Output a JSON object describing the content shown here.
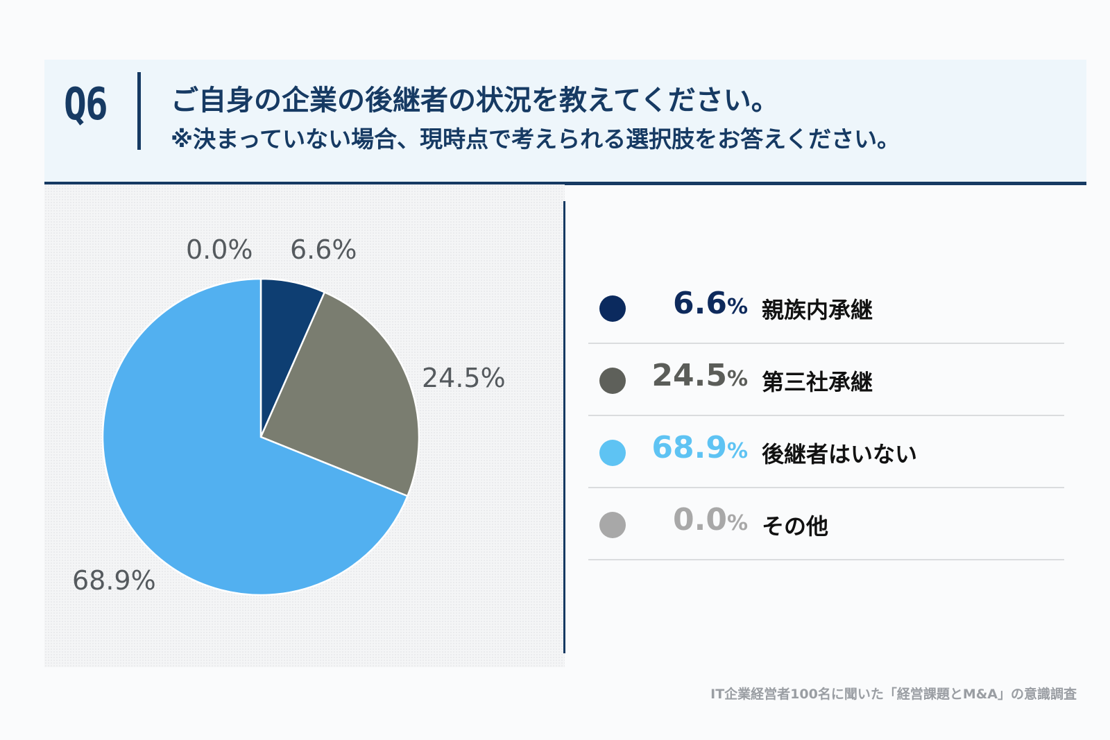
{
  "header": {
    "q_label": "Q6",
    "title": "ご自身の企業の後継者の状況を教えてください。",
    "subtitle": "※決まっていない場合、現時点で考えられる選択肢をお答えください。"
  },
  "chart_data": {
    "type": "pie",
    "title": "ご自身の企業の後継者の状況を教えてください。",
    "categories": [
      "親族内承継",
      "第三社承継",
      "後継者はいない",
      "その他"
    ],
    "values": [
      6.6,
      24.5,
      68.9,
      0.0
    ],
    "labels": [
      "6.6%",
      "24.5%",
      "68.9%",
      "0.0%"
    ],
    "colors": [
      "#0e3e72",
      "#7a7d70",
      "#52b0f0",
      "#a8a8a8"
    ]
  },
  "legend": {
    "items": [
      {
        "value": "6.6",
        "unit": "%",
        "label": "親族内承継",
        "dot_color": "#0b2a5e",
        "text_color": "#0e2a5c"
      },
      {
        "value": "24.5",
        "unit": "%",
        "label": "第三社承継",
        "dot_color": "#5e605a",
        "text_color": "#5b5d59"
      },
      {
        "value": "68.9",
        "unit": "%",
        "label": "後継者はいない",
        "dot_color": "#5ec3f3",
        "text_color": "#5ec3f3"
      },
      {
        "value": "0.0",
        "unit": "%",
        "label": "その他",
        "dot_color": "#a8a8a8",
        "text_color": "#a8a8a8"
      }
    ]
  },
  "footer": {
    "source": "IT企業経営者100名に聞いた「経営課題とM&A」の意識調査"
  }
}
